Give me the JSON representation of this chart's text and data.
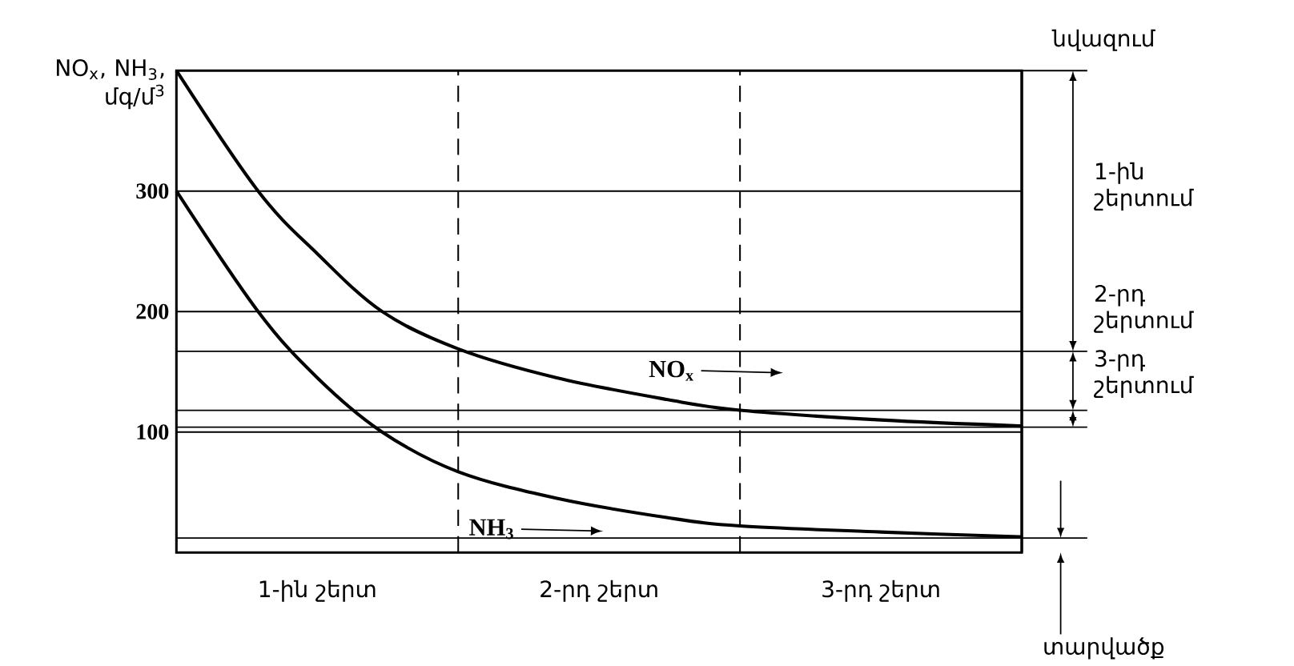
{
  "chart_data": {
    "type": "line",
    "ylabel": "NO$_{x}$, NH$_{3}$, մգ/մ$^{3}$",
    "x": [
      0,
      0.29,
      0.5,
      0.73,
      1,
      1.35,
      1.74,
      2,
      2.5,
      3
    ],
    "series": [
      {
        "name": "NO$_{x}$",
        "color": "#000000",
        "values": [
          400,
          300,
          248,
          200,
          169,
          145,
          127,
          118,
          110,
          105
        ]
      },
      {
        "name": "NH$_{3}$",
        "color": "#000000",
        "values": [
          300,
          200,
          145,
          100,
          67,
          45,
          29,
          22,
          17,
          13
        ]
      }
    ],
    "xlim": [
      0,
      3
    ],
    "ylim": [
      0,
      400
    ],
    "xticks": [
      {
        "value": 0.5,
        "label": "1-ին շերտ"
      },
      {
        "value": 1.5,
        "label": "2-րդ շերտ"
      },
      {
        "value": 2.5,
        "label": "3-րդ շերտ"
      }
    ],
    "yticks": [
      100,
      200,
      300
    ],
    "grid": "y",
    "legend": "center",
    "marker": "none",
    "line_style": "solid",
    "ref_lines": [
      {
        "axis": "x",
        "value": 1,
        "line_style": "dashed"
      },
      {
        "axis": "x",
        "value": 2,
        "line_style": "dashed"
      },
      {
        "axis": "y",
        "value": 167
      },
      {
        "axis": "y",
        "value": 118
      },
      {
        "axis": "y",
        "value": 104
      },
      {
        "axis": "y",
        "value": 12
      }
    ],
    "annotations": [
      "նվազում",
      "1-ին շերտում",
      "2-րդ շերտում",
      "3-րդ շերտում",
      "տարվածք"
    ]
  }
}
